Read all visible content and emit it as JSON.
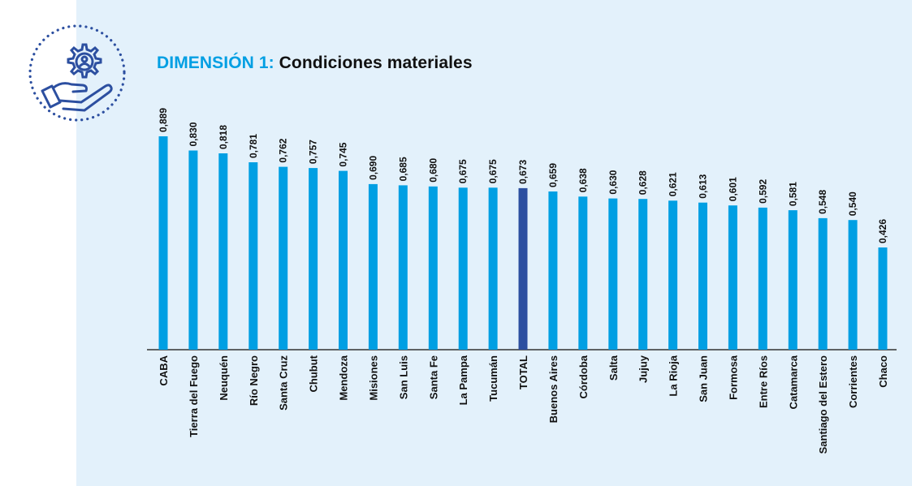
{
  "colors": {
    "panel_bg": "#e3f1fb",
    "bar": "#009fe3",
    "bar_highlight": "#2c4fa0",
    "title_accent": "#009fe3",
    "axis": "#333333",
    "logo": "#2c4fa0",
    "text": "#111111"
  },
  "header": {
    "icon": "hand-gear-user-icon",
    "title_prefix": "DIMENSIÓN 1:",
    "title_main": "Condiciones materiales"
  },
  "chart_data": {
    "type": "bar",
    "orientation": "vertical",
    "categories": [
      "CABA",
      "Tierra del Fuego",
      "Neuquén",
      "Río Negro",
      "Santa Cruz",
      "Chubut",
      "Mendoza",
      "Misiones",
      "San Luis",
      "Santa Fe",
      "La Pampa",
      "Tucumán",
      "TOTAL",
      "Buenos Aires",
      "Córdoba",
      "Salta",
      "Jujuy",
      "La Rioja",
      "San Juan",
      "Formosa",
      "Entre Ríos",
      "Catamarca",
      "Santiago del Estero",
      "Corrientes",
      "Chaco"
    ],
    "values": [
      0.889,
      0.83,
      0.818,
      0.781,
      0.762,
      0.757,
      0.745,
      0.69,
      0.685,
      0.68,
      0.675,
      0.675,
      0.673,
      0.659,
      0.638,
      0.63,
      0.628,
      0.621,
      0.613,
      0.601,
      0.592,
      0.581,
      0.548,
      0.54,
      0.426
    ],
    "value_labels": [
      "0,889",
      "0,830",
      "0,818",
      "0,781",
      "0,762",
      "0,757",
      "0,745",
      "0,690",
      "0,685",
      "0,680",
      "0,675",
      "0,675",
      "0,673",
      "0,659",
      "0,638",
      "0,630",
      "0,628",
      "0,621",
      "0,613",
      "0,601",
      "0,592",
      "0,581",
      "0,548",
      "0,540",
      "0,426"
    ],
    "highlight_category": "TOTAL",
    "title": "DIMENSIÓN 1: Condiciones materiales",
    "xlabel": "",
    "ylabel": "",
    "ylim": [
      0,
      0.889
    ],
    "grid": false,
    "legend": false
  }
}
